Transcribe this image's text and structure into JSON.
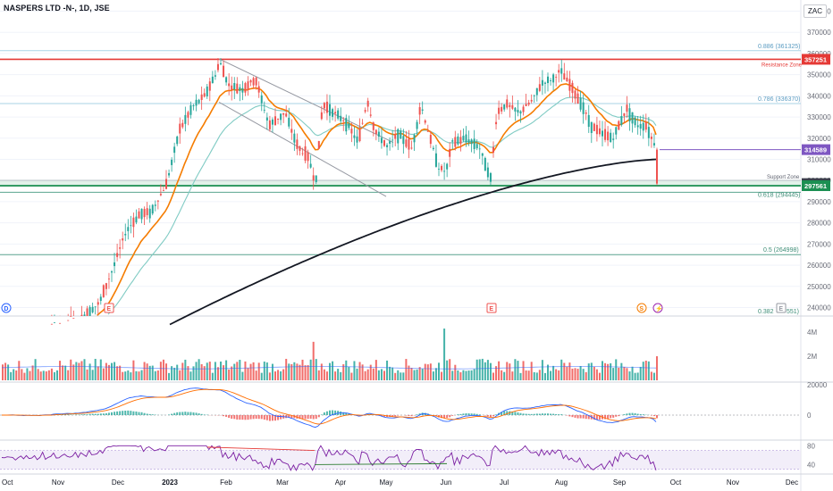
{
  "header": {
    "symbol_title": "NASPERS LTD -N-, 1D, JSE",
    "currency": "ZAC"
  },
  "colors": {
    "up": "#26a69a",
    "down": "#ef5350",
    "ema_fast": "#f57c00",
    "ema_mid": "#80cbc4",
    "sma_long": "#131722",
    "resistance": "#e53935",
    "support": "#1b8f52",
    "fib": "#a8d3e5",
    "rsi": "#7b1fa2"
  },
  "price_axis": {
    "ticks": [
      "380000",
      "370000",
      "360000",
      "350000",
      "340000",
      "330000",
      "320000",
      "310000",
      "300000",
      "290000",
      "280000",
      "270000",
      "260000",
      "250000",
      "240000"
    ],
    "labels": {
      "resistance": "357251",
      "current": "314589",
      "support_top": "298563",
      "support_low": "297561"
    }
  },
  "annotations": {
    "resistance_zone": "Resistance Zone",
    "support_zone": "Support Zone",
    "fib_0886": "0.886 (361325)",
    "fib_0786": "0.786 (336370)",
    "fib_0618": "0.618 (294445)",
    "fib_05": "0.5 (264998)",
    "fib_0382": "0.382",
    "fib_0382_value": "551)"
  },
  "markers": {
    "dividend": "D",
    "earnings": "E",
    "split": "S"
  },
  "volume_axis": {
    "ticks": [
      "4M",
      "2M"
    ]
  },
  "macd_axis": {
    "ticks": [
      "20000",
      "0"
    ]
  },
  "rsi_axis": {
    "ticks": [
      "80",
      "40"
    ]
  },
  "time_axis": {
    "labels": [
      "Oct",
      "Nov",
      "Dec",
      "2023",
      "Feb",
      "Mar",
      "Apr",
      "May",
      "Jun",
      "Jul",
      "Aug",
      "Sep",
      "Oct",
      "Nov",
      "Dec"
    ]
  },
  "chart_data": {
    "type": "candlestick",
    "title": "NASPERS LTD -N-, 1D, JSE",
    "y_range": [
      236000,
      384000
    ],
    "horizontal_levels": {
      "resistance": 357251,
      "support_top": 298563,
      "support_low": 297561,
      "last_price": 314589,
      "fib_0886": 361325,
      "fib_0786": 336370,
      "fib_0618": 294445,
      "fib_05": 264998
    },
    "series": [
      {
        "name": "Price",
        "type": "candlestick"
      },
      {
        "name": "EMA fast",
        "type": "line"
      },
      {
        "name": "EMA mid",
        "type": "line"
      },
      {
        "name": "SMA long",
        "type": "line"
      },
      {
        "name": "Volume",
        "type": "bar"
      },
      {
        "name": "MACD",
        "type": "histogram"
      },
      {
        "name": "RSI",
        "type": "line"
      }
    ]
  }
}
